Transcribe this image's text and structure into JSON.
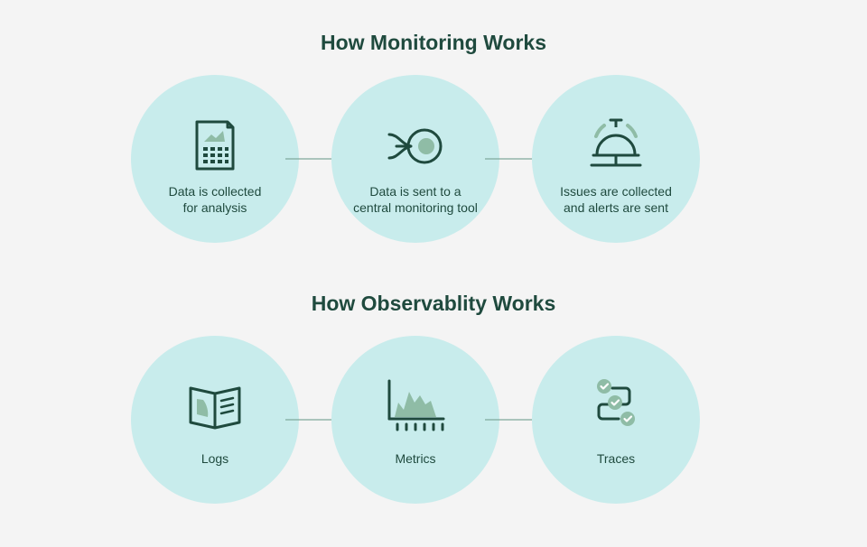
{
  "monitoring": {
    "title": "How Monitoring Works",
    "steps": [
      {
        "line1": "Data is collected",
        "line2": "for analysis",
        "icon": "document-chart-icon"
      },
      {
        "line1": "Data is sent to a",
        "line2": "central monitoring tool",
        "icon": "data-flow-icon"
      },
      {
        "line1": "Issues are collected",
        "line2": "and alerts are sent",
        "icon": "bell-icon"
      }
    ]
  },
  "observability": {
    "title": "How Observablity Works",
    "steps": [
      {
        "label": "Logs",
        "icon": "open-book-icon"
      },
      {
        "label": "Metrics",
        "icon": "area-chart-icon"
      },
      {
        "label": "Traces",
        "icon": "trace-checklist-icon"
      }
    ]
  },
  "colors": {
    "background": "#f4f4f4",
    "circle": "#c8ecec",
    "dark_green": "#1f4a3e",
    "accent_green": "#8fbca6",
    "arrow": "#7fa89b"
  }
}
